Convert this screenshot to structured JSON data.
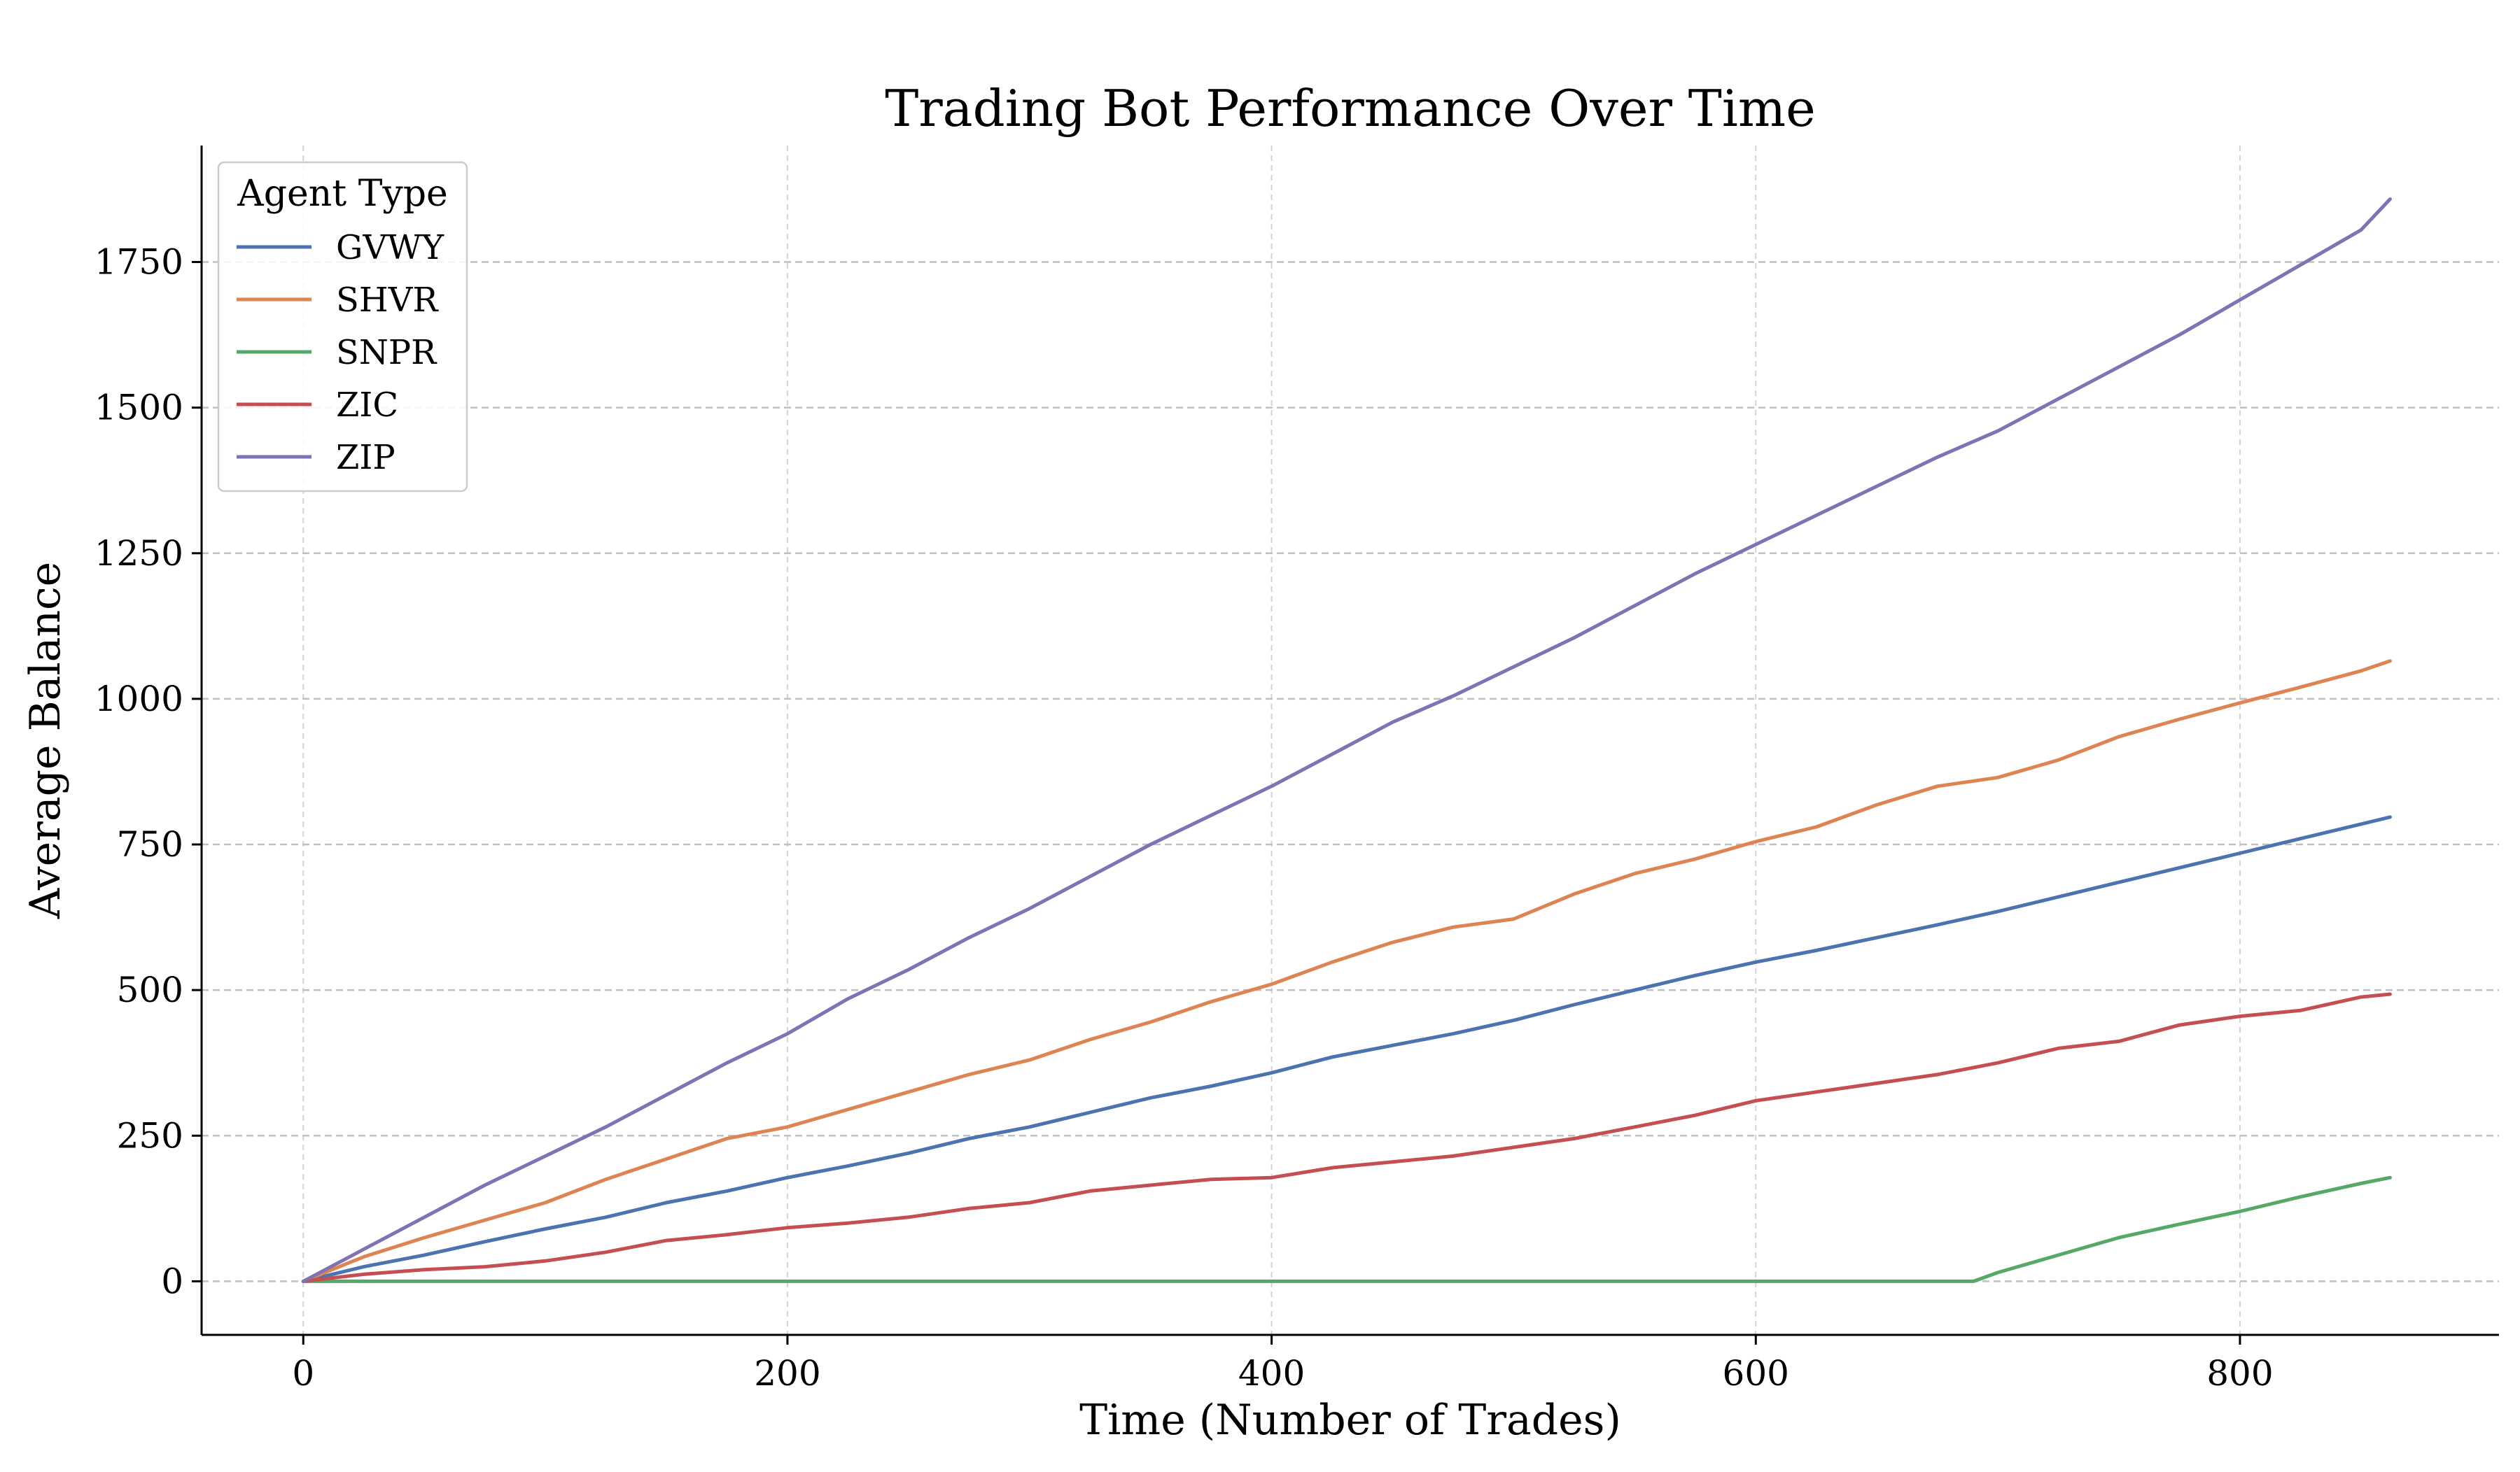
{
  "chart_data": {
    "type": "line",
    "title": "Trading Bot Performance Over Time",
    "xlabel": "Time (Number of Trades)",
    "ylabel": "Average Balance",
    "xlim": [
      -42,
      907
    ],
    "ylim": [
      -92,
      1950
    ],
    "x_ticks": [
      0,
      200,
      400,
      600,
      800
    ],
    "y_ticks": [
      0,
      250,
      500,
      750,
      1000,
      1250,
      1500,
      1750
    ],
    "grid": true,
    "grid_style": "dashed",
    "legend": {
      "title": "Agent Type",
      "position": "top-left"
    },
    "series": [
      {
        "name": "GVWY",
        "color": "#4c72b0",
        "x": [
          0,
          25,
          50,
          75,
          100,
          125,
          150,
          175,
          200,
          225,
          250,
          275,
          300,
          325,
          350,
          375,
          400,
          425,
          450,
          475,
          500,
          525,
          550,
          575,
          600,
          625,
          650,
          675,
          700,
          725,
          750,
          775,
          800,
          825,
          850,
          862
        ],
        "y": [
          0,
          25,
          45,
          68,
          90,
          110,
          135,
          155,
          178,
          198,
          220,
          245,
          265,
          290,
          315,
          335,
          358,
          385,
          405,
          425,
          448,
          475,
          500,
          525,
          548,
          568,
          590,
          612,
          635,
          660,
          685,
          710,
          735,
          760,
          785,
          797
        ]
      },
      {
        "name": "SHVR",
        "color": "#dd8452",
        "x": [
          0,
          25,
          50,
          75,
          100,
          125,
          150,
          175,
          200,
          225,
          250,
          275,
          300,
          325,
          350,
          375,
          400,
          425,
          450,
          475,
          500,
          525,
          550,
          575,
          600,
          625,
          650,
          675,
          700,
          725,
          750,
          775,
          800,
          825,
          850,
          862
        ],
        "y": [
          0,
          42,
          75,
          105,
          135,
          175,
          210,
          245,
          265,
          295,
          325,
          355,
          380,
          415,
          445,
          480,
          510,
          548,
          582,
          608,
          622,
          665,
          700,
          725,
          755,
          780,
          818,
          850,
          865,
          895,
          935,
          965,
          993,
          1020,
          1048,
          1065
        ]
      },
      {
        "name": "SNPR",
        "color": "#55a868",
        "x": [
          0,
          100,
          200,
          300,
          400,
          500,
          600,
          690,
          700,
          725,
          750,
          775,
          800,
          825,
          850,
          862
        ],
        "y": [
          0,
          0,
          0,
          0,
          0,
          0,
          0,
          0,
          15,
          45,
          75,
          98,
          120,
          145,
          168,
          178
        ]
      },
      {
        "name": "ZIC",
        "color": "#c44e52",
        "x": [
          0,
          25,
          50,
          75,
          100,
          125,
          150,
          175,
          200,
          225,
          250,
          275,
          300,
          325,
          350,
          375,
          400,
          425,
          450,
          475,
          500,
          525,
          550,
          575,
          600,
          625,
          650,
          675,
          700,
          725,
          750,
          775,
          800,
          825,
          850,
          862
        ],
        "y": [
          0,
          12,
          20,
          25,
          35,
          50,
          70,
          80,
          92,
          100,
          110,
          125,
          135,
          155,
          165,
          175,
          178,
          195,
          205,
          215,
          230,
          245,
          265,
          285,
          310,
          325,
          340,
          355,
          375,
          400,
          412,
          440,
          455,
          465,
          488,
          493
        ]
      },
      {
        "name": "ZIP",
        "color": "#8172b3",
        "x": [
          0,
          25,
          50,
          75,
          100,
          125,
          150,
          175,
          200,
          225,
          250,
          275,
          300,
          325,
          350,
          375,
          400,
          425,
          450,
          475,
          500,
          525,
          550,
          575,
          600,
          625,
          650,
          675,
          700,
          725,
          750,
          775,
          800,
          825,
          850,
          862
        ],
        "y": [
          0,
          55,
          110,
          165,
          215,
          265,
          320,
          375,
          425,
          485,
          535,
          590,
          640,
          695,
          750,
          800,
          850,
          905,
          960,
          1005,
          1055,
          1105,
          1160,
          1215,
          1265,
          1315,
          1365,
          1415,
          1460,
          1515,
          1570,
          1625,
          1685,
          1745,
          1805,
          1858
        ]
      }
    ]
  }
}
